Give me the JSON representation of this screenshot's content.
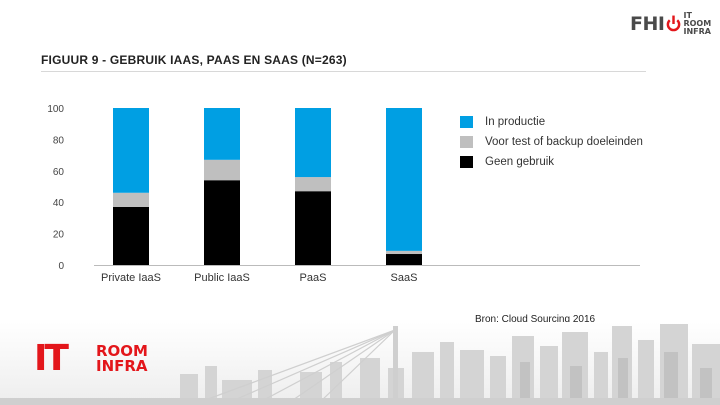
{
  "header": {
    "logo_left": "FHI",
    "logo_right": "IT ROOM INFRA",
    "logo_right_line1": "IT ROOM",
    "logo_right_line2": "INFRA"
  },
  "title": "FIGUUR 9 - GEBRUIK IAAS, PAAS EN SAAS (N=263)",
  "source": "Bron: Cloud Sourcing 2016",
  "footer_logo": {
    "it": "IT",
    "room": "ROOM",
    "infra": "INFRA"
  },
  "colors": {
    "production": "#009fe3",
    "test_backup": "#bfbfbf",
    "none": "#000000",
    "brand_red": "#e3161b"
  },
  "chart_data": {
    "type": "bar",
    "stacked": true,
    "title": "FIGUUR 9 - GEBRUIK IAAS, PAAS EN SAAS (N=263)",
    "xlabel": "",
    "ylabel": "",
    "ylim": [
      0,
      100
    ],
    "yticks": [
      "0",
      "20",
      "40",
      "60",
      "80",
      "100"
    ],
    "categories": [
      "Private IaaS",
      "Public IaaS",
      "PaaS",
      "SaaS"
    ],
    "series": [
      {
        "name": "Geen gebruik",
        "values": [
          37,
          54,
          47,
          7
        ]
      },
      {
        "name": "Voor test of backup doeleinden",
        "values": [
          9,
          13,
          9,
          2
        ]
      },
      {
        "name": "In productie",
        "values": [
          54,
          33,
          44,
          91
        ]
      }
    ],
    "legend": [
      "In productie",
      "Voor test of backup doeleinden",
      "Geen gebruik"
    ],
    "legend_position": "right",
    "grid": false
  }
}
